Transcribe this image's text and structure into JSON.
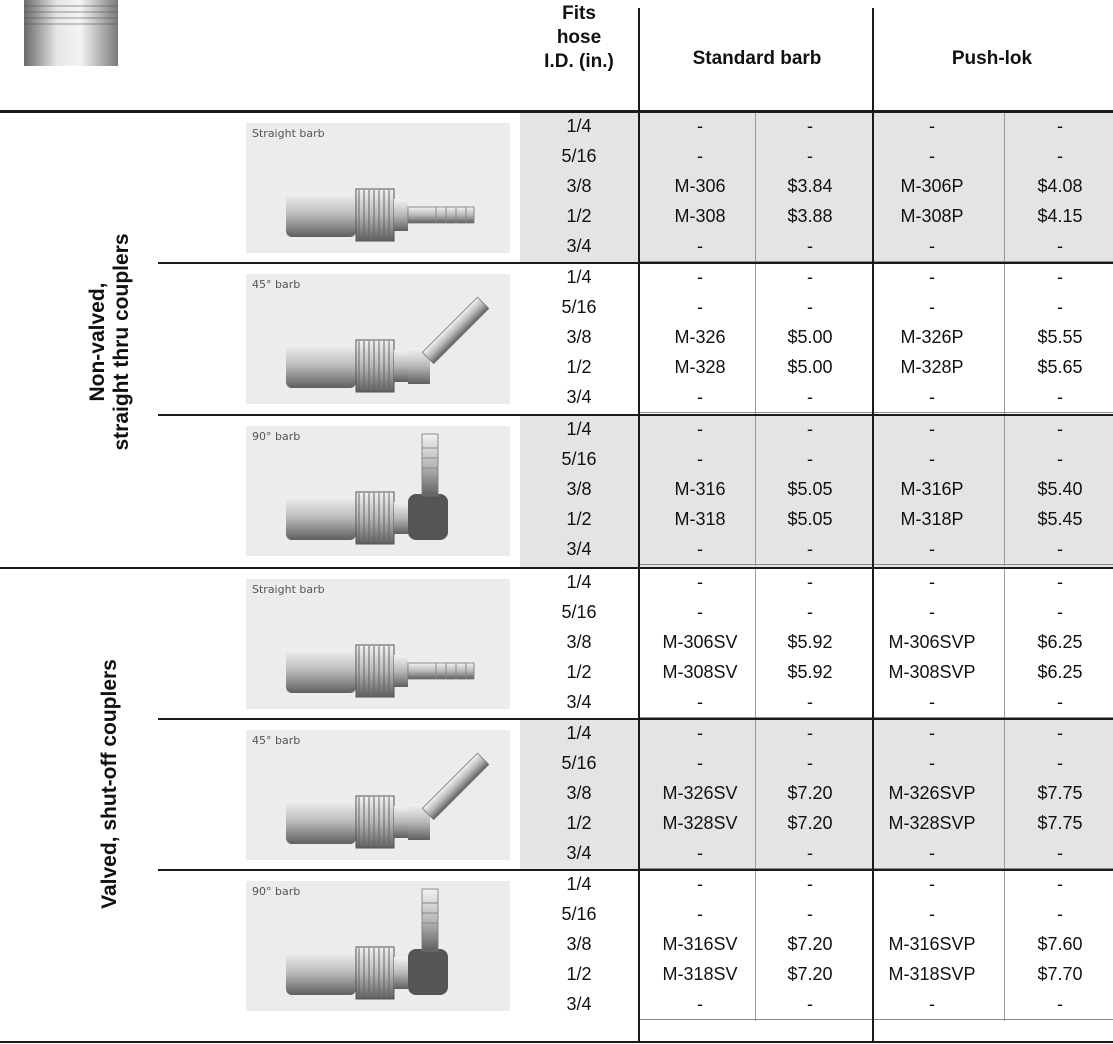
{
  "header": {
    "fits_label": [
      "Fits",
      "hose",
      "I.D. (in.)"
    ],
    "standard_label": "Standard barb",
    "pushlok_label": "Push-lok"
  },
  "sections": [
    {
      "label_lines": [
        "Non-valved,",
        "straight thru couplers"
      ]
    },
    {
      "label_lines": [
        "Valved, shut-off couplers"
      ]
    }
  ],
  "image_labels": [
    "Straight barb",
    "45° barb",
    "90° barb",
    "Straight barb",
    "45° barb",
    "90° barb"
  ],
  "sizes": [
    "1/4",
    "5/16",
    "3/8",
    "1/2",
    "3/4"
  ],
  "groups": [
    {
      "rows": [
        [
          "-",
          "-",
          "-",
          "-"
        ],
        [
          "-",
          "-",
          "-",
          "-"
        ],
        [
          "M-306",
          "$3.84",
          "M-306P",
          "$4.08"
        ],
        [
          "M-308",
          "$3.88",
          "M-308P",
          "$4.15"
        ],
        [
          "-",
          "-",
          "-",
          "-"
        ]
      ]
    },
    {
      "rows": [
        [
          "-",
          "-",
          "-",
          "-"
        ],
        [
          "-",
          "-",
          "-",
          "-"
        ],
        [
          "M-326",
          "$5.00",
          "M-326P",
          "$5.55"
        ],
        [
          "M-328",
          "$5.00",
          "M-328P",
          "$5.65"
        ],
        [
          "-",
          "-",
          "-",
          "-"
        ]
      ]
    },
    {
      "rows": [
        [
          "-",
          "-",
          "-",
          "-"
        ],
        [
          "-",
          "-",
          "-",
          "-"
        ],
        [
          "M-316",
          "$5.05",
          "M-316P",
          "$5.40"
        ],
        [
          "M-318",
          "$5.05",
          "M-318P",
          "$5.45"
        ],
        [
          "-",
          "-",
          "-",
          "-"
        ]
      ]
    },
    {
      "rows": [
        [
          "-",
          "-",
          "-",
          "-"
        ],
        [
          "-",
          "-",
          "-",
          "-"
        ],
        [
          "M-306SV",
          "$5.92",
          "M-306SVP",
          "$6.25"
        ],
        [
          "M-308SV",
          "$5.92",
          "M-308SVP",
          "$6.25"
        ],
        [
          "-",
          "-",
          "-",
          "-"
        ]
      ]
    },
    {
      "rows": [
        [
          "-",
          "-",
          "-",
          "-"
        ],
        [
          "-",
          "-",
          "-",
          "-"
        ],
        [
          "M-326SV",
          "$7.20",
          "M-326SVP",
          "$7.75"
        ],
        [
          "M-328SV",
          "$7.20",
          "M-328SVP",
          "$7.75"
        ],
        [
          "-",
          "-",
          "-",
          "-"
        ]
      ]
    },
    {
      "rows": [
        [
          "-",
          "-",
          "-",
          "-"
        ],
        [
          "-",
          "-",
          "-",
          "-"
        ],
        [
          "M-316SV",
          "$7.20",
          "M-316SVP",
          "$7.60"
        ],
        [
          "M-318SV",
          "$7.20",
          "M-318SVP",
          "$7.70"
        ],
        [
          "-",
          "-",
          "-",
          "-"
        ]
      ]
    }
  ]
}
